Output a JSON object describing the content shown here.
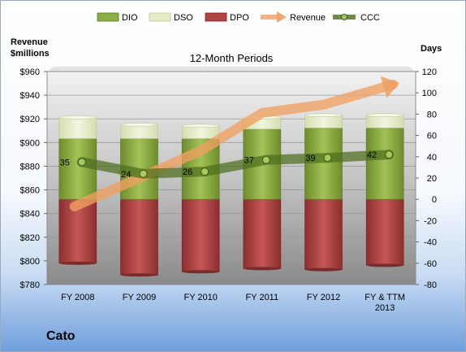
{
  "company_name": "Cato",
  "chart_data": {
    "type": "bar",
    "title": "12-Month Periods",
    "left_axis_label": [
      "Revenue",
      "$millions"
    ],
    "right_axis_label": "Days",
    "categories": [
      [
        "FY 2008"
      ],
      [
        "FY 2009"
      ],
      [
        "FY 2010"
      ],
      [
        "FY 2011"
      ],
      [
        "FY 2012"
      ],
      [
        "FY & TTM",
        "2013"
      ]
    ],
    "left_axis": {
      "min": 780,
      "max": 960,
      "step": 20,
      "prefix": "$"
    },
    "right_axis": {
      "min": -80,
      "max": 120,
      "step": 20
    },
    "legend_position": "top",
    "grid": true,
    "series": [
      {
        "name": "DIO",
        "type": "stacked-bar",
        "axis": "right",
        "color": "#86a83e",
        "values": [
          57,
          57,
          57,
          66,
          67,
          67
        ]
      },
      {
        "name": "DSO",
        "type": "stacked-bar",
        "axis": "right",
        "color": "#e2ecc6",
        "values": [
          20,
          13,
          12,
          11,
          12,
          12
        ]
      },
      {
        "name": "DPO",
        "type": "bar-below-zero",
        "axis": "right",
        "color": "#b04545",
        "values": [
          -60,
          -71,
          -68,
          -65,
          -66,
          -62
        ]
      },
      {
        "name": "Revenue",
        "type": "line-arrow",
        "axis": "left",
        "color": "#f0a060",
        "values": [
          846,
          870,
          893,
          925,
          932,
          949
        ]
      },
      {
        "name": "CCC",
        "type": "line",
        "axis": "right",
        "color": "#4e6d1f",
        "values": [
          35,
          24,
          26,
          37,
          39,
          42
        ],
        "labels": [
          "35",
          "24",
          "26",
          "37",
          "39",
          "42"
        ]
      }
    ]
  }
}
